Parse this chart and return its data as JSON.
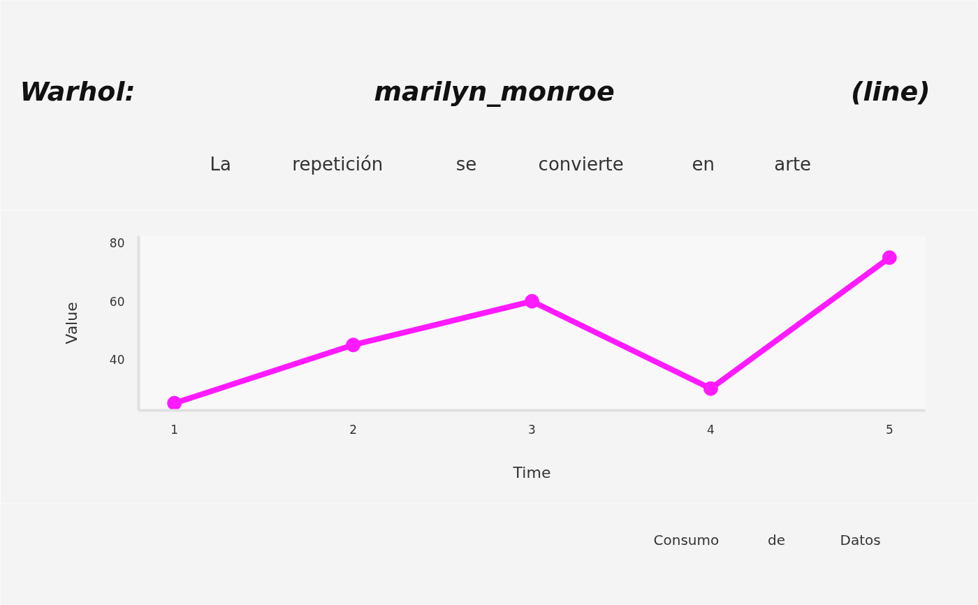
{
  "chart_data": {
    "type": "line",
    "title": "Warhol: marilyn_monroe (line)",
    "subtitle": "La repetición se convierte en arte",
    "xlabel": "Time",
    "ylabel": "Value",
    "annotations": [
      "Consumo de Datos"
    ],
    "x": [
      1,
      2,
      3,
      4,
      5
    ],
    "series": [
      {
        "color": "#ff1aff",
        "values": [
          25,
          45,
          60,
          30,
          75
        ]
      }
    ],
    "xlim": [
      0.8,
      5.2
    ],
    "ylim": [
      22.5,
      82.5
    ],
    "xticks": [
      1,
      2,
      3,
      4,
      5
    ],
    "yticks": [
      40,
      60,
      80
    ],
    "grid": false,
    "marker": "circle",
    "line_style": "solid"
  }
}
